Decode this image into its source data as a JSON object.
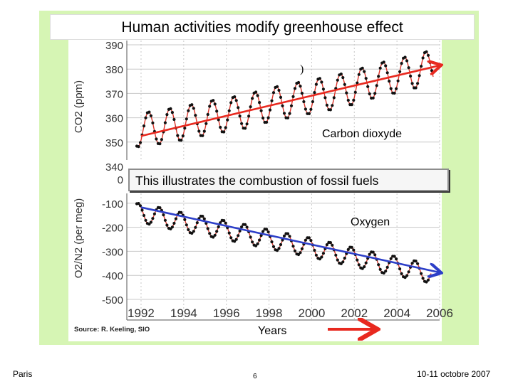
{
  "slide": {
    "title": "Human activities modify greenhouse effect",
    "banner": "This illustrates the combustion of fossil fuels",
    "co2_label": "Carbon dioxyde",
    "o2_label": "Oxygen",
    "years_label": "Years",
    "source": "Source: R. Keeling, SIO",
    "footer_left": "Paris",
    "footer_center": "6",
    "footer_right": "10-11 octobre 2007"
  },
  "colors": {
    "background_green": "#d6f5b4",
    "trend_red": "#e8291f",
    "trend_blue": "#2d3fc8",
    "fit_line": "#d9352b",
    "points": "#111111",
    "grid": "#c8c8c8"
  },
  "chart_data": [
    {
      "type": "line",
      "title": "",
      "ylabel": "CO2 (ppm)",
      "xlabel": "",
      "xlim": [
        1991.5,
        2006
      ],
      "ylim": [
        340,
        390
      ],
      "yticks": [
        340,
        350,
        360,
        370,
        380,
        390
      ],
      "grid": true,
      "seasonal_amplitude": 7,
      "series": [
        {
          "name": "Carbon dioxyde",
          "style": "seasonal-points-fit",
          "x": [
            1992,
            1993,
            1994,
            1995,
            1996,
            1997,
            1998,
            1999,
            2000,
            2001,
            2002,
            2003,
            2004,
            2005,
            2005.7
          ],
          "y": [
            355,
            356.3,
            357.8,
            359.7,
            361.2,
            362.7,
            365.3,
            367,
            368.7,
            370.3,
            372.5,
            375.3,
            377.2,
            379.4,
            381
          ]
        },
        {
          "style": "trend-arrow",
          "x": [
            1992,
            2006
          ],
          "y": [
            352.5,
            381.5
          ]
        }
      ]
    },
    {
      "type": "line",
      "title": "",
      "ylabel": "O2/N2 (per meg)",
      "xlabel": "",
      "xlim": [
        1991.5,
        2006
      ],
      "ylim": [
        -500,
        0
      ],
      "yticks": [
        0,
        -100,
        -200,
        -300,
        -400,
        -500
      ],
      "xticks": [
        1992,
        1994,
        1996,
        1998,
        2000,
        2002,
        2004,
        2006
      ],
      "grid": true,
      "seasonal_amplitude": 40,
      "series": [
        {
          "name": "Oxygen",
          "style": "seasonal-points-fit",
          "x": [
            1992,
            1993,
            1994,
            1995,
            1996,
            1997,
            1998,
            1999,
            2000,
            2001,
            2002,
            2003,
            2004,
            2005,
            2005.6
          ],
          "y": [
            -140,
            -160,
            -180,
            -195,
            -213,
            -230,
            -250,
            -268,
            -285,
            -305,
            -325,
            -345,
            -362,
            -382,
            -392
          ]
        },
        {
          "style": "trend-arrow",
          "x": [
            1992,
            2006
          ],
          "y": [
            -117,
            -388
          ]
        }
      ]
    }
  ]
}
